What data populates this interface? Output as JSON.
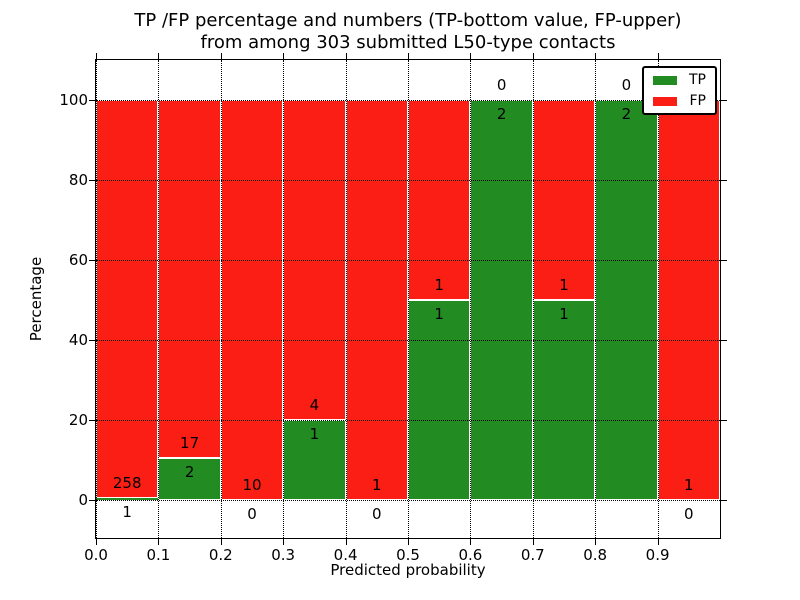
{
  "chart_data": {
    "type": "bar",
    "stacked": true,
    "title": "TP /FP percentage and numbers (TP-bottom value, FP-upper)\nfrom among 303 submitted L50-type contacts",
    "title_lines": [
      "TP /FP percentage and numbers (TP-bottom value, FP-upper)",
      "from among 303 submitted L50-type contacts"
    ],
    "xlabel": "Predicted probability",
    "ylabel": "Percentage",
    "xlim": [
      0.0,
      1.0
    ],
    "ylim": [
      -9.5,
      110
    ],
    "xticks": [
      0.0,
      0.1,
      0.2,
      0.3,
      0.4,
      0.5,
      0.6,
      0.7,
      0.8,
      0.9
    ],
    "xtick_labels": [
      "0.0",
      "0.1",
      "0.2",
      "0.3",
      "0.4",
      "0.5",
      "0.6",
      "0.7",
      "0.8",
      "0.9"
    ],
    "yticks": [
      0,
      20,
      40,
      60,
      80,
      100
    ],
    "ytick_labels": [
      "0",
      "20",
      "40",
      "60",
      "80",
      "100"
    ],
    "grid": true,
    "total_contacts": 303,
    "series": [
      {
        "name": "TP",
        "color": "#228b22",
        "counts": [
          1,
          2,
          0,
          1,
          0,
          1,
          2,
          1,
          2,
          0
        ]
      },
      {
        "name": "FP",
        "color": "#fa1e14",
        "counts": [
          258,
          17,
          10,
          4,
          1,
          1,
          0,
          1,
          0,
          1
        ]
      }
    ],
    "bins": [
      {
        "x0": 0.0,
        "x1": 0.1,
        "tp_count": 1,
        "fp_count": 258,
        "tp_pct": 0.39,
        "fp_pct": 99.61
      },
      {
        "x0": 0.1,
        "x1": 0.2,
        "tp_count": 2,
        "fp_count": 17,
        "tp_pct": 10.53,
        "fp_pct": 89.47
      },
      {
        "x0": 0.2,
        "x1": 0.3,
        "tp_count": 0,
        "fp_count": 10,
        "tp_pct": 0,
        "fp_pct": 100
      },
      {
        "x0": 0.3,
        "x1": 0.4,
        "tp_count": 1,
        "fp_count": 4,
        "tp_pct": 20,
        "fp_pct": 80
      },
      {
        "x0": 0.4,
        "x1": 0.5,
        "tp_count": 0,
        "fp_count": 1,
        "tp_pct": 0,
        "fp_pct": 100
      },
      {
        "x0": 0.5,
        "x1": 0.6,
        "tp_count": 1,
        "fp_count": 1,
        "tp_pct": 50,
        "fp_pct": 50
      },
      {
        "x0": 0.6,
        "x1": 0.7,
        "tp_count": 2,
        "fp_count": 0,
        "tp_pct": 100,
        "fp_pct": 0
      },
      {
        "x0": 0.7,
        "x1": 0.8,
        "tp_count": 1,
        "fp_count": 1,
        "tp_pct": 50,
        "fp_pct": 50
      },
      {
        "x0": 0.8,
        "x1": 0.9,
        "tp_count": 2,
        "fp_count": 0,
        "tp_pct": 100,
        "fp_pct": 0
      },
      {
        "x0": 0.9,
        "x1": 1.0,
        "tp_count": 0,
        "fp_count": 1,
        "tp_pct": 0,
        "fp_pct": 100
      }
    ],
    "legend": {
      "position": "upper right",
      "entries": [
        {
          "label": "TP",
          "color": "#228b22"
        },
        {
          "label": "FP",
          "color": "#fa1e14"
        }
      ]
    },
    "colors": {
      "tp": "#228b22",
      "fp": "#fa1e14",
      "bar_edge": "#ffffff",
      "grid": "#000000",
      "background": "#ffffff",
      "text": "#000000"
    }
  }
}
